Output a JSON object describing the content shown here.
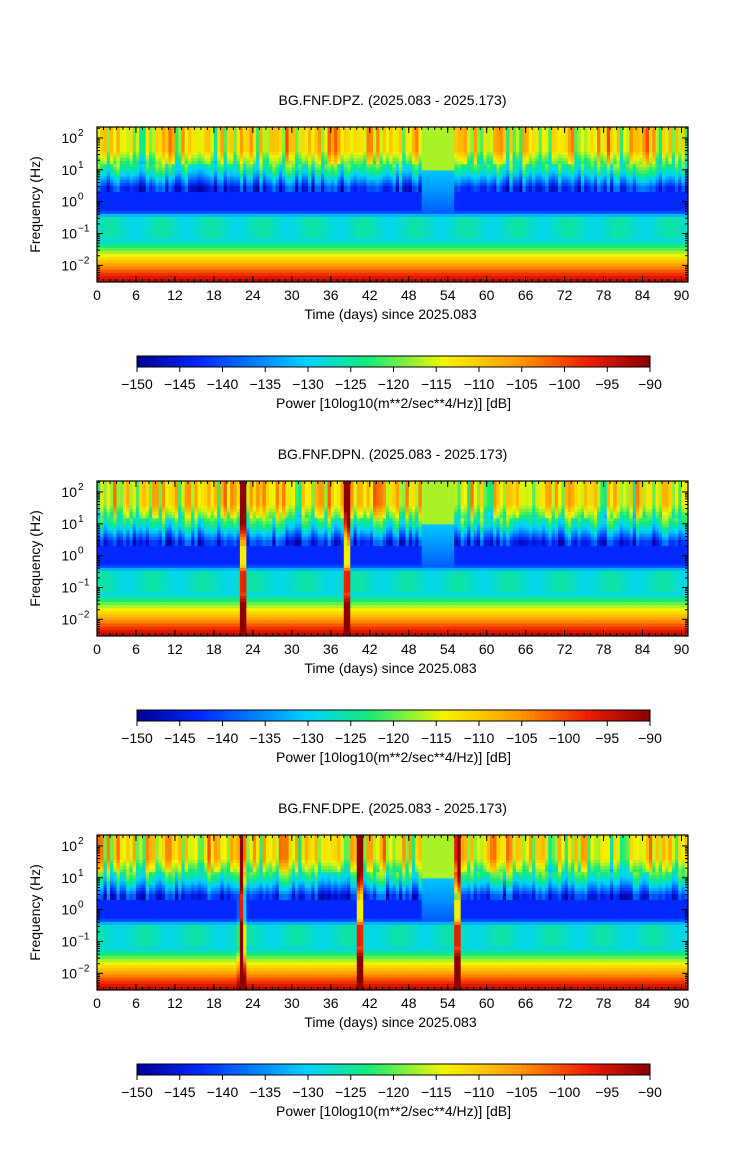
{
  "chart_data": [
    {
      "type": "heatmap",
      "title": "BG.FNF.DPZ. (2025.083 - 2025.173)",
      "xlabel": "Time (days) since 2025.083",
      "ylabel": "Frequency (Hz)",
      "xlim": [
        0,
        91
      ],
      "ylim": [
        0.003,
        220
      ],
      "yscale": "log",
      "xticks": [
        "0",
        "6",
        "12",
        "18",
        "24",
        "30",
        "36",
        "42",
        "48",
        "54",
        "60",
        "66",
        "72",
        "78",
        "84",
        "90"
      ],
      "yticks": [
        {
          "base": "10",
          "exp": "2"
        },
        {
          "base": "10",
          "exp": "1"
        },
        {
          "base": "10",
          "exp": "0"
        },
        {
          "base": "10",
          "exp": "−1"
        },
        {
          "base": "10",
          "exp": "−2"
        }
      ],
      "gap_days": [
        50,
        55
      ],
      "noise_events": [],
      "colorbar": {
        "label": "Power [10log10(m**2/sec**4/Hz)] [dB]",
        "range": [
          -150,
          -90
        ],
        "ticks": [
          "−150",
          "−145",
          "−140",
          "−135",
          "−130",
          "−125",
          "−120",
          "−115",
          "−110",
          "−105",
          "−100",
          "−95",
          "−90"
        ]
      }
    },
    {
      "type": "heatmap",
      "title": "BG.FNF.DPN. (2025.083 - 2025.173)",
      "xlabel": "Time (days) since 2025.083",
      "ylabel": "Frequency (Hz)",
      "xlim": [
        0,
        91
      ],
      "ylim": [
        0.003,
        220
      ],
      "yscale": "log",
      "xticks": [
        "0",
        "6",
        "12",
        "18",
        "24",
        "30",
        "36",
        "42",
        "48",
        "54",
        "60",
        "66",
        "72",
        "78",
        "84",
        "90"
      ],
      "yticks": [
        {
          "base": "10",
          "exp": "2"
        },
        {
          "base": "10",
          "exp": "1"
        },
        {
          "base": "10",
          "exp": "0"
        },
        {
          "base": "10",
          "exp": "−1"
        },
        {
          "base": "10",
          "exp": "−2"
        }
      ],
      "gap_days": [
        50,
        55
      ],
      "noise_events": [
        22.5,
        38.5
      ],
      "colorbar": {
        "label": "Power [10log10(m**2/sec**4/Hz)] [dB]",
        "range": [
          -150,
          -90
        ],
        "ticks": [
          "−150",
          "−145",
          "−140",
          "−135",
          "−130",
          "−125",
          "−120",
          "−115",
          "−110",
          "−105",
          "−100",
          "−95",
          "−90"
        ]
      }
    },
    {
      "type": "heatmap",
      "title": "BG.FNF.DPE. (2025.083 - 2025.173)",
      "xlabel": "Time (days) since 2025.083",
      "ylabel": "Frequency (Hz)",
      "xlim": [
        0,
        91
      ],
      "ylim": [
        0.003,
        220
      ],
      "yscale": "log",
      "xticks": [
        "0",
        "6",
        "12",
        "18",
        "24",
        "30",
        "36",
        "42",
        "48",
        "54",
        "60",
        "66",
        "72",
        "78",
        "84",
        "90"
      ],
      "yticks": [
        {
          "base": "10",
          "exp": "2"
        },
        {
          "base": "10",
          "exp": "1"
        },
        {
          "base": "10",
          "exp": "0"
        },
        {
          "base": "10",
          "exp": "−1"
        },
        {
          "base": "10",
          "exp": "−2"
        }
      ],
      "gap_days": [
        50,
        55
      ],
      "noise_events": [
        22.3,
        40.5,
        55.5
      ],
      "colorbar": {
        "label": "Power [10log10(m**2/sec**4/Hz)] [dB]",
        "range": [
          -150,
          -90
        ],
        "ticks": [
          "−150",
          "−145",
          "−140",
          "−135",
          "−130",
          "−125",
          "−120",
          "−115",
          "−110",
          "−105",
          "−100",
          "−95",
          "−90"
        ]
      }
    }
  ]
}
